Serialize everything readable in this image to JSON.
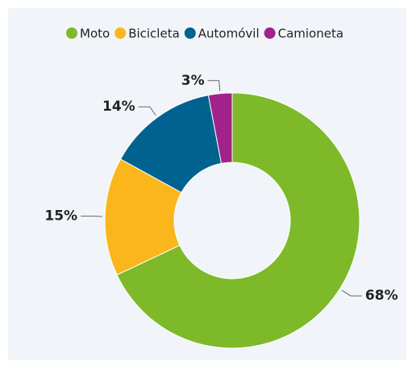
{
  "chart_data": {
    "type": "donut",
    "categories": [
      "Moto",
      "Bicicleta",
      "Automóvil",
      "Camioneta"
    ],
    "values": [
      68,
      15,
      14,
      3
    ],
    "value_labels": [
      "68%",
      "15%",
      "14%",
      "3%"
    ],
    "colors": [
      "#7db929",
      "#fbb61b",
      "#00628f",
      "#a1228a"
    ],
    "legend": "top"
  }
}
